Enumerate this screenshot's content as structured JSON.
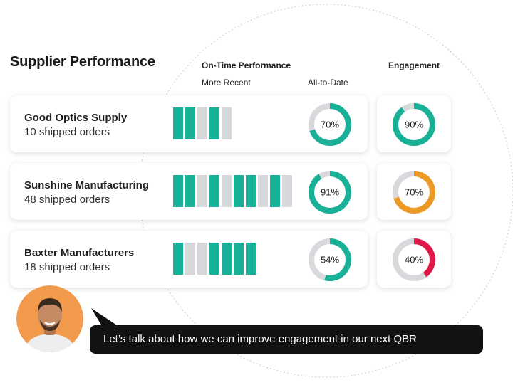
{
  "title": "Supplier Performance",
  "headers": {
    "on_time": "On-Time Performance",
    "more_recent": "More Recent",
    "all_to_date": "All-to-Date",
    "engagement": "Engagement"
  },
  "colors": {
    "teal": "#18b097",
    "bar_gray": "#d5d7da",
    "ring_gray": "#d8d9dc",
    "orange": "#ec9a23",
    "red": "#e1194b",
    "bubble_bg": "#121212",
    "avatar_bg": "#f29a4c"
  },
  "suppliers": [
    {
      "name": "Good Optics Supply",
      "orders": "10 shipped orders",
      "recent": [
        1,
        1,
        0,
        1,
        0
      ],
      "all_to_date": {
        "label": "70%",
        "value": 70
      },
      "engagement": {
        "label": "90%",
        "value": 90,
        "status": "teal"
      }
    },
    {
      "name": "Sunshine Manufacturing",
      "orders": "48 shipped orders",
      "recent": [
        1,
        1,
        0,
        1,
        0,
        1,
        1,
        0,
        1,
        0
      ],
      "all_to_date": {
        "label": "91%",
        "value": 91
      },
      "engagement": {
        "label": "70%",
        "value": 70,
        "status": "orange"
      }
    },
    {
      "name": "Baxter Manufacturers",
      "orders": "18 shipped orders",
      "recent": [
        1,
        0,
        0,
        1,
        1,
        1,
        1
      ],
      "all_to_date": {
        "label": "54%",
        "value": 54
      },
      "engagement": {
        "label": "40%",
        "value": 40,
        "status": "red"
      }
    }
  ],
  "chat": {
    "message": "Let’s talk about how we can improve engagement in our next QBR"
  }
}
